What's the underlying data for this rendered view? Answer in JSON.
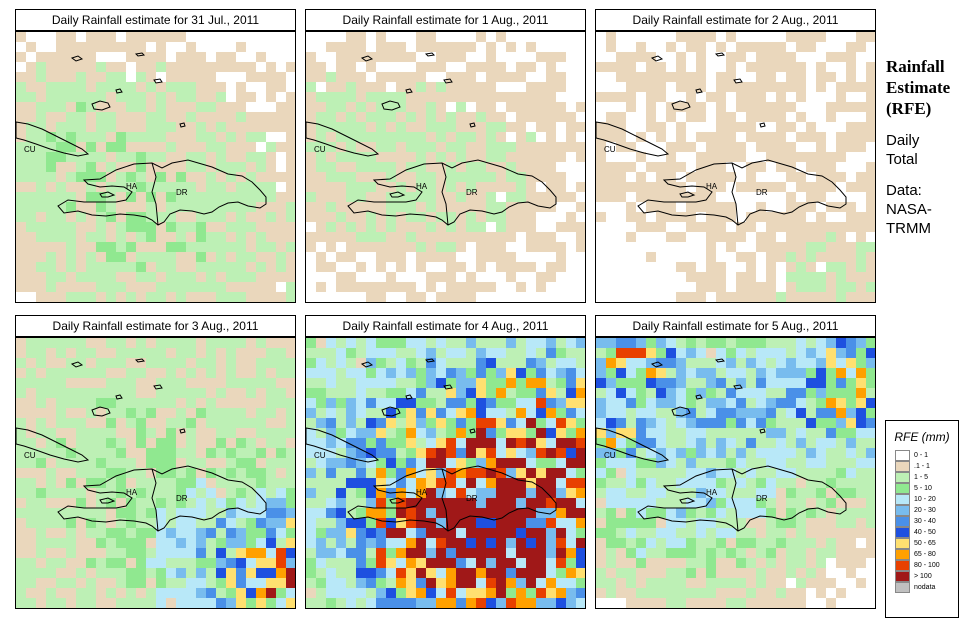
{
  "panels": [
    {
      "title": "Daily Rainfall estimate for  31 Jul., 2011",
      "intensity": 0
    },
    {
      "title": "Daily Rainfall estimate for  1 Aug., 2011",
      "intensity": 1
    },
    {
      "title": "Daily Rainfall estimate for  2 Aug., 2011",
      "intensity": 2
    },
    {
      "title": "Daily Rainfall estimate for  3 Aug., 2011",
      "intensity": 3
    },
    {
      "title": "Daily Rainfall estimate for  4 Aug., 2011",
      "intensity": 4
    },
    {
      "title": "Daily Rainfall estimate for  5 Aug., 2011",
      "intensity": 5
    }
  ],
  "map_labels": {
    "cu": "CU",
    "ha": "HA",
    "dr": "DR"
  },
  "side": {
    "h1": "Rainfall",
    "h2": "Estimate",
    "h3": "(RFE)",
    "t1": "Daily",
    "t2": "Total",
    "t3": "Data:",
    "t4": "NASA-",
    "t5": "TRMM"
  },
  "legend": {
    "title": "RFE (mm)",
    "items": [
      {
        "label": "0 - 1",
        "color": "#ffffff"
      },
      {
        "label": ".1 - 1",
        "color": "#ead7bc"
      },
      {
        "label": "1 - 5",
        "color": "#bdf0b5"
      },
      {
        "label": "5 - 10",
        "color": "#90e890"
      },
      {
        "label": "10 - 20",
        "color": "#b8e8f8"
      },
      {
        "label": "20 - 30",
        "color": "#78bcee"
      },
      {
        "label": "30 - 40",
        "color": "#4a90e8"
      },
      {
        "label": "40 - 50",
        "color": "#1e50e0"
      },
      {
        "label": "50 - 65",
        "color": "#ffe070"
      },
      {
        "label": "65 - 80",
        "color": "#ffa000"
      },
      {
        "label": "80 - 100",
        "color": "#e84000"
      },
      {
        "label": "> 100",
        "color": "#a01818"
      },
      {
        "label": "nodata",
        "color": "#c0c0c0"
      }
    ]
  }
}
